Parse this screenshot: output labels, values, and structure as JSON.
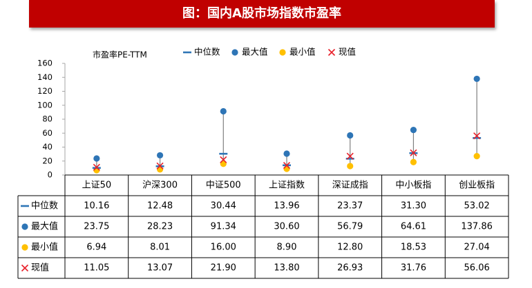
{
  "header": {
    "title": "图：国内A股市场指数市盈率"
  },
  "chart_data": {
    "type": "scatter",
    "ylabel": "市盈率PE-TTM",
    "ylim": [
      0,
      160
    ],
    "yticks": [
      "0",
      "20",
      "40",
      "60",
      "80",
      "100",
      "120",
      "140",
      "160"
    ],
    "legend_position": "top",
    "categories": [
      "上证50",
      "沪深300",
      "中证500",
      "上证指数",
      "深证成指",
      "中小板指",
      "创业板指"
    ],
    "series": [
      {
        "name": "中位数",
        "marker": "dash",
        "color": "#2e75b6",
        "values": [
          10.16,
          12.48,
          30.44,
          13.96,
          23.37,
          31.3,
          53.02
        ],
        "labels": [
          "10.16",
          "12.48",
          "30.44",
          "13.96",
          "23.37",
          "31.30",
          "53.02"
        ]
      },
      {
        "name": "最大值",
        "marker": "circle",
        "color": "#2e75b6",
        "values": [
          23.75,
          28.23,
          91.34,
          30.6,
          56.79,
          64.61,
          137.86
        ],
        "labels": [
          "23.75",
          "28.23",
          "91.34",
          "30.60",
          "56.79",
          "64.61",
          "137.86"
        ]
      },
      {
        "name": "最小值",
        "marker": "circle",
        "color": "#ffc000",
        "values": [
          6.94,
          8.01,
          16.0,
          8.9,
          12.8,
          18.53,
          27.04
        ],
        "labels": [
          "6.94",
          "8.01",
          "16.00",
          "8.90",
          "12.80",
          "18.53",
          "27.04"
        ]
      },
      {
        "name": "现值",
        "marker": "x",
        "color": "#e8202a",
        "values": [
          11.05,
          13.07,
          21.9,
          13.8,
          26.93,
          31.76,
          56.06
        ],
        "labels": [
          "11.05",
          "13.07",
          "21.90",
          "13.80",
          "26.93",
          "31.76",
          "56.06"
        ]
      }
    ]
  }
}
